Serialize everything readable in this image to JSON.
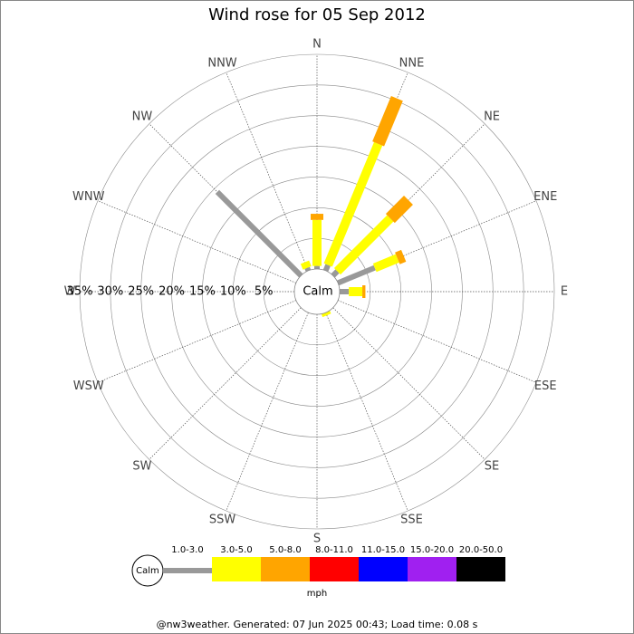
{
  "chart_data": {
    "type": "windrose",
    "title": "Wind rose for 05 Sep 2012",
    "categories": [
      "N",
      "NNE",
      "NE",
      "ENE",
      "E",
      "ESE",
      "SE",
      "SSE",
      "S",
      "SSW",
      "SW",
      "WSW",
      "W",
      "WNW",
      "NW",
      "NNW"
    ],
    "calm_label": "Calm",
    "unit": "mph",
    "rlim": [
      0,
      35
    ],
    "rticks": [
      {
        "value": 5,
        "label": "5%"
      },
      {
        "value": 10,
        "label": "10%"
      },
      {
        "value": 15,
        "label": "15%"
      },
      {
        "value": 20,
        "label": "20%"
      },
      {
        "value": 25,
        "label": "25%"
      },
      {
        "value": 30,
        "label": "30%"
      },
      {
        "value": 35,
        "label": "35%"
      }
    ],
    "grid": true,
    "series": [
      {
        "name": "1.0-3.0",
        "color": "#999999",
        "values": [
          0.5,
          1,
          1,
          6.5,
          1.5,
          0,
          0,
          0,
          0,
          0,
          0,
          0,
          0,
          0,
          19.3,
          0.5
        ]
      },
      {
        "name": "3.0-5.0",
        "color": "#ffff00",
        "values": [
          7.5,
          21.4,
          12.2,
          4,
          2.2,
          0,
          0,
          0.5,
          0,
          0,
          0,
          0,
          0,
          0,
          0,
          1
        ]
      },
      {
        "name": "5.0-8.0",
        "color": "#ffa500",
        "values": [
          1,
          8,
          4.2,
          1.1,
          0.5,
          0,
          0,
          0,
          0,
          0,
          0,
          0,
          0,
          0,
          0,
          0
        ]
      },
      {
        "name": "8.0-11.0",
        "color": "#ff0000",
        "values": [
          0,
          0,
          0,
          0,
          0,
          0,
          0,
          0,
          0,
          0,
          0,
          0,
          0,
          0,
          0,
          0
        ]
      },
      {
        "name": "11.0-15.0",
        "color": "#0000ff",
        "values": [
          0,
          0,
          0,
          0,
          0,
          0,
          0,
          0,
          0,
          0,
          0,
          0,
          0,
          0,
          0,
          0
        ]
      },
      {
        "name": "15.0-20.0",
        "color": "#a020f0",
        "values": [
          0,
          0,
          0,
          0,
          0,
          0,
          0,
          0,
          0,
          0,
          0,
          0,
          0,
          0,
          0,
          0
        ]
      },
      {
        "name": "20.0-50.0",
        "color": "#000000",
        "values": [
          0,
          0,
          0,
          0,
          0,
          0,
          0,
          0,
          0,
          0,
          0,
          0,
          0,
          0,
          0,
          0
        ]
      }
    ],
    "footer": "@nw3weather. Generated: 07 Jun 2025 00:43; Load time: 0.08 s"
  }
}
